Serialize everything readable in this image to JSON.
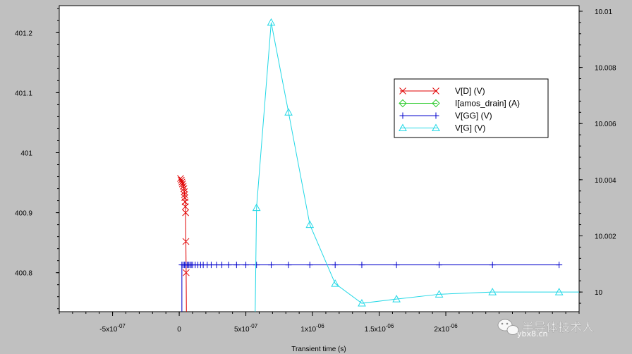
{
  "chart_data": {
    "type": "line",
    "xlabel": "Transient time (s)",
    "xlim": [
      -9e-07,
      3e-06
    ],
    "ylim_left": [
      400.735,
      401.245
    ],
    "ylim_right": [
      9.9993,
      10.0102
    ],
    "x_ticks": [
      {
        "value": -5e-07,
        "mant": "-5x10",
        "exp": "-07"
      },
      {
        "value": 0,
        "mant": "0",
        "exp": ""
      },
      {
        "value": 5e-07,
        "mant": "5x10",
        "exp": "-07"
      },
      {
        "value": 1e-06,
        "mant": "1x10",
        "exp": "-06"
      },
      {
        "value": 1.5e-06,
        "mant": "1.5x10",
        "exp": "-06"
      },
      {
        "value": 2e-06,
        "mant": "2x10",
        "exp": "-06"
      }
    ],
    "y_left_ticks": [
      "400.8",
      "400.9",
      "401",
      "401.1",
      "401.2"
    ],
    "y_right_ticks": [
      "10",
      "10.002",
      "10.004",
      "10.006",
      "10.008",
      "10.01"
    ],
    "legend": {
      "placement": "top-right",
      "entries": [
        {
          "label": "V[D] (V)",
          "color": "#e00000",
          "marker": "x"
        },
        {
          "label": "I[amos_drain] (A)",
          "color": "#2ecc2e",
          "marker": "diamond"
        },
        {
          "label": "V[GG] (V)",
          "color": "#0000cc",
          "marker": "plus"
        },
        {
          "label": "V[G] (V)",
          "color": "#22d8e6",
          "marker": "triangle"
        }
      ]
    },
    "series": [
      {
        "name": "V[D] (V)",
        "color": "#e00000",
        "axis": "left",
        "marker": "x",
        "points": [
          [
            1e-08,
            400.957
          ],
          [
            1.5e-08,
            400.954
          ],
          [
            2e-08,
            400.951
          ],
          [
            2.5e-08,
            400.948
          ],
          [
            3e-08,
            400.944
          ],
          [
            3.5e-08,
            400.94
          ],
          [
            3.8e-08,
            400.935
          ],
          [
            4e-08,
            400.93
          ],
          [
            4.2e-08,
            400.925
          ],
          [
            4.4e-08,
            400.918
          ],
          [
            4.6e-08,
            400.91
          ],
          [
            4.8e-08,
            400.9
          ],
          [
            5e-08,
            400.852
          ],
          [
            5.2e-08,
            400.8
          ],
          [
            5.4e-08,
            400.735
          ]
        ]
      },
      {
        "name": "V[GG] (V)",
        "color": "#0000cc",
        "axis": "left",
        "marker": "plus",
        "points": [
          [
            2e-08,
            400.735
          ],
          [
            2e-08,
            400.813
          ],
          [
            3e-08,
            400.813
          ],
          [
            4e-08,
            400.813
          ],
          [
            5e-08,
            400.813
          ],
          [
            6e-08,
            400.813
          ],
          [
            7e-08,
            400.813
          ],
          [
            8e-08,
            400.813
          ],
          [
            9e-08,
            400.813
          ],
          [
            1e-07,
            400.813
          ],
          [
            1.2e-07,
            400.813
          ],
          [
            1.4e-07,
            400.813
          ],
          [
            1.6e-07,
            400.813
          ],
          [
            1.8e-07,
            400.813
          ],
          [
            2.1e-07,
            400.813
          ],
          [
            2.4e-07,
            400.813
          ],
          [
            2.8e-07,
            400.813
          ],
          [
            3.2e-07,
            400.813
          ],
          [
            3.7e-07,
            400.813
          ],
          [
            4.3e-07,
            400.813
          ],
          [
            5e-07,
            400.813
          ],
          [
            5.8e-07,
            400.813
          ],
          [
            6.9e-07,
            400.813
          ],
          [
            8.2e-07,
            400.813
          ],
          [
            9.8e-07,
            400.813
          ],
          [
            1.17e-06,
            400.813
          ],
          [
            1.37e-06,
            400.813
          ],
          [
            1.63e-06,
            400.813
          ],
          [
            1.95e-06,
            400.813
          ],
          [
            2.35e-06,
            400.813
          ],
          [
            2.85e-06,
            400.813
          ]
        ]
      },
      {
        "name": "V[G] (V)",
        "color": "#22d8e6",
        "axis": "right",
        "marker": "triangle",
        "points": [
          [
            5.7e-07,
            9.9993
          ],
          [
            5.8e-07,
            10.003
          ],
          [
            6.9e-07,
            10.0096
          ],
          [
            8.2e-07,
            10.0064
          ],
          [
            9.8e-07,
            10.0024
          ],
          [
            1.17e-06,
            10.0003
          ],
          [
            1.37e-06,
            9.9996
          ],
          [
            1.63e-06,
            9.99975
          ],
          [
            1.95e-06,
            9.99992
          ],
          [
            2.35e-06,
            10.0
          ],
          [
            2.85e-06,
            10.0
          ],
          [
            3e-06,
            10.0
          ]
        ]
      }
    ]
  },
  "watermark": {
    "text": "半导体技术人",
    "sub": "ybx8.cn",
    "icon": "wechat-icon"
  }
}
